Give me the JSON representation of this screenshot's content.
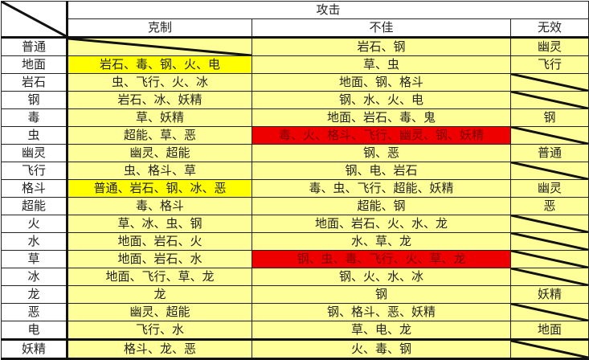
{
  "header": {
    "attack": "攻击",
    "strong": "克制",
    "weak": "不佳",
    "none": "无效"
  },
  "colors": {
    "cell": "#ffff99",
    "highlight": "#ffff00",
    "bad": "#ee0000"
  },
  "rows": [
    {
      "type": "普通",
      "strong": "",
      "weak": "岩石、钢",
      "none": "幽灵"
    },
    {
      "type": "地面",
      "strong": "岩石、毒、钢、火、电",
      "strong_highlight": true,
      "weak": "草、虫",
      "none": "飞行"
    },
    {
      "type": "岩石",
      "strong": "虫、飞行、火、冰",
      "weak": "地面、钢、格斗",
      "none": ""
    },
    {
      "type": "钢",
      "strong": "岩石、冰、妖精",
      "weak": "钢、水、火、电",
      "none": ""
    },
    {
      "type": "毒",
      "strong": "草、妖精",
      "weak": "地面、岩石、毒、鬼",
      "none": "钢"
    },
    {
      "type": "虫",
      "strong": "超能、草、恶",
      "weak": "毒、火、格斗、飞行、幽灵、钢、妖精",
      "weak_bad": true,
      "none": ""
    },
    {
      "type": "幽灵",
      "strong": "幽灵、超能",
      "weak": "钢、恶",
      "none": "普通"
    },
    {
      "type": "飞行",
      "strong": "虫、格斗、草",
      "weak": "钢、电、岩石",
      "none": ""
    },
    {
      "type": "格斗",
      "strong": "普通、岩石、钢、冰、恶",
      "strong_highlight": true,
      "weak": "毒、虫、飞行、超能、妖精",
      "none": "幽灵"
    },
    {
      "type": "超能",
      "strong": "毒、格斗",
      "weak": "超能、钢",
      "none": "恶"
    },
    {
      "type": "火",
      "strong": "草、冰、虫、钢",
      "weak": "地面、岩石、火、水、龙",
      "none": ""
    },
    {
      "type": "水",
      "strong": "地面、岩石、火",
      "weak": "水、草、龙",
      "none": ""
    },
    {
      "type": "草",
      "strong": "地面、岩石、水",
      "weak": "钢、虫、毒、飞行、火、草、龙",
      "weak_bad": true,
      "none": ""
    },
    {
      "type": "冰",
      "strong": "地面、飞行、草、龙",
      "weak": "钢、火、水、冰",
      "none": ""
    },
    {
      "type": "龙",
      "strong": "龙",
      "weak": "钢",
      "none": "妖精"
    },
    {
      "type": "恶",
      "strong": "幽灵、超能",
      "weak": "钢、格斗、恶、妖精",
      "none": ""
    },
    {
      "type": "电",
      "strong": "飞行、水",
      "weak": "草、电、龙",
      "none": "地面"
    },
    {
      "type": "妖精",
      "strong": "格斗、龙、恶",
      "weak": "火、毒、钢",
      "none": ""
    }
  ]
}
